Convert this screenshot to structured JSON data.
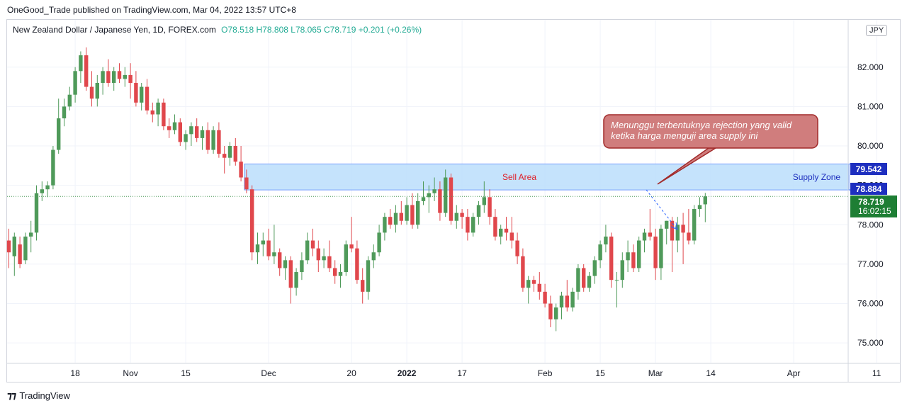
{
  "publisher_line": "OneGood_Trade published on TradingView.com, Mar 04, 2022 13:57 UTC+8",
  "legend": {
    "symbol": "New Zealand Dollar / Japanese Yen, 1D, FOREX.com",
    "open": "O78.518",
    "high": "H78.808",
    "low": "L78.065",
    "close": "C78.719",
    "change": "+0.201 (+0.26%)"
  },
  "currency_badge": "JPY",
  "footer_brand": "TradingView",
  "colors": {
    "up": "#4f9a5a",
    "down": "#e0474c",
    "zone_fill": "#bbdefb",
    "zone_border": "#2962ff",
    "sell_label": "#e0202a",
    "supply_label": "#1e2fbf",
    "callout_fill": "#d07d7d",
    "callout_border": "#a12a2a",
    "price_badge": "#1e7e34",
    "zone_badge": "#1e2fbf"
  },
  "annotations": {
    "sell_area": "Sell Area",
    "supply_zone": "Supply Zone",
    "callout_line1": "Menunggu terbentuknya rejection yang valid",
    "callout_line2": "ketika harga menguji area supply ini"
  },
  "price_badges": {
    "zone_top": "79.542",
    "zone_bottom": "78.884",
    "last_price": "78.719",
    "countdown": "16:02:15"
  },
  "chart_data": {
    "type": "candlestick",
    "timeframe": "1D",
    "ylim": [
      74.5,
      83.2
    ],
    "y_ticks": [
      75.0,
      76.0,
      77.0,
      78.0,
      79.0,
      80.0,
      81.0,
      82.0
    ],
    "y_tick_labels": [
      "75.000",
      "76.000",
      "77.000",
      "78.000",
      "79.000",
      "80.000",
      "81.000",
      "82.000"
    ],
    "x_tick_labels": [
      {
        "label": "18",
        "index": 12
      },
      {
        "label": "Nov",
        "index": 22
      },
      {
        "label": "15",
        "index": 32
      },
      {
        "label": "Dec",
        "index": 47
      },
      {
        "label": "20",
        "index": 62
      },
      {
        "label": "2022",
        "index": 72
      },
      {
        "label": "17",
        "index": 82
      },
      {
        "label": "Feb",
        "index": 97
      },
      {
        "label": "15",
        "index": 107
      },
      {
        "label": "Mar",
        "index": 117
      },
      {
        "label": "14",
        "index": 127
      },
      {
        "label": "Apr",
        "index": 142
      },
      {
        "label": "11",
        "index": 157
      }
    ],
    "supply_zone": {
      "top": 79.542,
      "bottom": 78.884,
      "start_index": 43,
      "end_index": 152
    },
    "last_close": 78.719,
    "candles": [
      {
        "o": 77.6,
        "h": 77.9,
        "l": 76.9,
        "c": 77.3
      },
      {
        "o": 77.2,
        "h": 77.8,
        "l": 76.7,
        "c": 77.7
      },
      {
        "o": 77.5,
        "h": 77.7,
        "l": 76.9,
        "c": 77.0
      },
      {
        "o": 77.1,
        "h": 77.8,
        "l": 77.0,
        "c": 77.7
      },
      {
        "o": 77.7,
        "h": 78.1,
        "l": 77.3,
        "c": 77.8
      },
      {
        "o": 77.8,
        "h": 79.0,
        "l": 77.6,
        "c": 78.8
      },
      {
        "o": 78.8,
        "h": 79.1,
        "l": 78.6,
        "c": 78.9
      },
      {
        "o": 78.9,
        "h": 79.1,
        "l": 78.7,
        "c": 79.0
      },
      {
        "o": 79.0,
        "h": 80.0,
        "l": 78.9,
        "c": 79.9
      },
      {
        "o": 79.9,
        "h": 81.2,
        "l": 79.8,
        "c": 80.7
      },
      {
        "o": 80.7,
        "h": 81.2,
        "l": 80.5,
        "c": 81.0
      },
      {
        "o": 81.0,
        "h": 81.5,
        "l": 80.9,
        "c": 81.3
      },
      {
        "o": 81.3,
        "h": 82.0,
        "l": 81.1,
        "c": 81.9
      },
      {
        "o": 81.9,
        "h": 82.4,
        "l": 81.6,
        "c": 82.3
      },
      {
        "o": 82.3,
        "h": 82.5,
        "l": 81.4,
        "c": 81.5
      },
      {
        "o": 81.5,
        "h": 81.9,
        "l": 81.0,
        "c": 81.2
      },
      {
        "o": 81.2,
        "h": 81.8,
        "l": 81.0,
        "c": 81.6
      },
      {
        "o": 81.6,
        "h": 82.0,
        "l": 81.3,
        "c": 81.9
      },
      {
        "o": 81.9,
        "h": 82.2,
        "l": 81.5,
        "c": 81.6
      },
      {
        "o": 81.6,
        "h": 82.0,
        "l": 81.4,
        "c": 81.9
      },
      {
        "o": 81.9,
        "h": 82.1,
        "l": 81.6,
        "c": 81.7
      },
      {
        "o": 81.7,
        "h": 82.0,
        "l": 81.5,
        "c": 81.8
      },
      {
        "o": 81.8,
        "h": 82.1,
        "l": 81.2,
        "c": 81.6
      },
      {
        "o": 81.6,
        "h": 81.9,
        "l": 81.0,
        "c": 81.1
      },
      {
        "o": 81.1,
        "h": 81.6,
        "l": 80.9,
        "c": 81.5
      },
      {
        "o": 81.5,
        "h": 81.7,
        "l": 80.8,
        "c": 80.9
      },
      {
        "o": 80.9,
        "h": 81.1,
        "l": 80.6,
        "c": 80.8
      },
      {
        "o": 80.8,
        "h": 81.2,
        "l": 80.5,
        "c": 81.1
      },
      {
        "o": 81.1,
        "h": 81.2,
        "l": 80.4,
        "c": 80.5
      },
      {
        "o": 80.5,
        "h": 80.7,
        "l": 80.2,
        "c": 80.4
      },
      {
        "o": 80.4,
        "h": 80.8,
        "l": 80.3,
        "c": 80.6
      },
      {
        "o": 80.6,
        "h": 80.7,
        "l": 80.0,
        "c": 80.1
      },
      {
        "o": 80.1,
        "h": 80.4,
        "l": 79.9,
        "c": 80.3
      },
      {
        "o": 80.3,
        "h": 80.6,
        "l": 80.0,
        "c": 80.5
      },
      {
        "o": 80.5,
        "h": 80.7,
        "l": 80.1,
        "c": 80.2
      },
      {
        "o": 80.2,
        "h": 80.5,
        "l": 79.9,
        "c": 80.4
      },
      {
        "o": 80.4,
        "h": 80.6,
        "l": 79.8,
        "c": 79.9
      },
      {
        "o": 79.9,
        "h": 80.5,
        "l": 79.8,
        "c": 80.4
      },
      {
        "o": 80.4,
        "h": 80.6,
        "l": 79.7,
        "c": 79.8
      },
      {
        "o": 79.8,
        "h": 80.0,
        "l": 79.3,
        "c": 79.7
      },
      {
        "o": 79.7,
        "h": 80.1,
        "l": 79.5,
        "c": 80.0
      },
      {
        "o": 80.0,
        "h": 80.2,
        "l": 79.5,
        "c": 79.6
      },
      {
        "o": 79.6,
        "h": 80.0,
        "l": 79.1,
        "c": 79.2
      },
      {
        "o": 79.2,
        "h": 79.4,
        "l": 78.8,
        "c": 78.9
      },
      {
        "o": 78.9,
        "h": 79.0,
        "l": 77.1,
        "c": 77.3
      },
      {
        "o": 77.3,
        "h": 77.8,
        "l": 77.0,
        "c": 77.5
      },
      {
        "o": 77.5,
        "h": 77.8,
        "l": 77.2,
        "c": 77.6
      },
      {
        "o": 77.6,
        "h": 77.9,
        "l": 77.1,
        "c": 77.2
      },
      {
        "o": 77.2,
        "h": 78.0,
        "l": 77.0,
        "c": 77.3
      },
      {
        "o": 77.3,
        "h": 77.4,
        "l": 76.7,
        "c": 76.9
      },
      {
        "o": 76.9,
        "h": 77.2,
        "l": 76.6,
        "c": 77.1
      },
      {
        "o": 77.1,
        "h": 77.2,
        "l": 76.0,
        "c": 76.4
      },
      {
        "o": 76.4,
        "h": 76.9,
        "l": 76.2,
        "c": 76.8
      },
      {
        "o": 76.8,
        "h": 77.3,
        "l": 76.6,
        "c": 77.1
      },
      {
        "o": 77.1,
        "h": 77.8,
        "l": 77.0,
        "c": 77.6
      },
      {
        "o": 77.6,
        "h": 77.9,
        "l": 77.2,
        "c": 77.4
      },
      {
        "o": 77.4,
        "h": 77.6,
        "l": 76.8,
        "c": 77.1
      },
      {
        "o": 77.1,
        "h": 77.4,
        "l": 76.9,
        "c": 77.2
      },
      {
        "o": 77.2,
        "h": 77.6,
        "l": 76.8,
        "c": 76.9
      },
      {
        "o": 76.9,
        "h": 77.1,
        "l": 76.5,
        "c": 76.7
      },
      {
        "o": 76.7,
        "h": 77.0,
        "l": 76.4,
        "c": 76.8
      },
      {
        "o": 76.8,
        "h": 77.6,
        "l": 76.7,
        "c": 77.5
      },
      {
        "o": 77.5,
        "h": 78.2,
        "l": 77.3,
        "c": 77.4
      },
      {
        "o": 77.4,
        "h": 77.6,
        "l": 76.5,
        "c": 76.6
      },
      {
        "o": 76.6,
        "h": 76.9,
        "l": 76.0,
        "c": 76.3
      },
      {
        "o": 76.3,
        "h": 77.2,
        "l": 76.1,
        "c": 77.1
      },
      {
        "o": 77.1,
        "h": 77.5,
        "l": 76.9,
        "c": 77.3
      },
      {
        "o": 77.3,
        "h": 78.0,
        "l": 77.2,
        "c": 77.8
      },
      {
        "o": 77.8,
        "h": 78.3,
        "l": 77.6,
        "c": 78.2
      },
      {
        "o": 78.2,
        "h": 78.4,
        "l": 77.9,
        "c": 78.0
      },
      {
        "o": 78.0,
        "h": 78.5,
        "l": 77.8,
        "c": 78.3
      },
      {
        "o": 78.3,
        "h": 78.6,
        "l": 78.0,
        "c": 78.1
      },
      {
        "o": 78.1,
        "h": 78.7,
        "l": 78.0,
        "c": 78.5
      },
      {
        "o": 78.5,
        "h": 78.8,
        "l": 77.9,
        "c": 78.0
      },
      {
        "o": 78.0,
        "h": 78.8,
        "l": 77.9,
        "c": 78.6
      },
      {
        "o": 78.6,
        "h": 79.1,
        "l": 78.5,
        "c": 78.7
      },
      {
        "o": 78.7,
        "h": 79.0,
        "l": 78.3,
        "c": 78.8
      },
      {
        "o": 78.8,
        "h": 79.2,
        "l": 78.6,
        "c": 78.9
      },
      {
        "o": 78.9,
        "h": 79.1,
        "l": 78.1,
        "c": 78.3
      },
      {
        "o": 78.3,
        "h": 79.4,
        "l": 78.2,
        "c": 79.2
      },
      {
        "o": 79.2,
        "h": 79.3,
        "l": 78.0,
        "c": 78.1
      },
      {
        "o": 78.1,
        "h": 78.5,
        "l": 77.9,
        "c": 78.3
      },
      {
        "o": 78.3,
        "h": 78.4,
        "l": 77.9,
        "c": 78.2
      },
      {
        "o": 78.2,
        "h": 78.4,
        "l": 77.6,
        "c": 77.8
      },
      {
        "o": 77.8,
        "h": 78.3,
        "l": 77.7,
        "c": 78.2
      },
      {
        "o": 78.2,
        "h": 78.6,
        "l": 78.0,
        "c": 78.5
      },
      {
        "o": 78.5,
        "h": 79.1,
        "l": 78.3,
        "c": 78.7
      },
      {
        "o": 78.7,
        "h": 78.9,
        "l": 78.0,
        "c": 78.2
      },
      {
        "o": 78.2,
        "h": 78.4,
        "l": 77.6,
        "c": 77.7
      },
      {
        "o": 77.7,
        "h": 78.0,
        "l": 77.5,
        "c": 77.9
      },
      {
        "o": 77.9,
        "h": 78.2,
        "l": 77.6,
        "c": 77.8
      },
      {
        "o": 77.8,
        "h": 78.2,
        "l": 77.4,
        "c": 77.6
      },
      {
        "o": 77.6,
        "h": 77.8,
        "l": 77.0,
        "c": 77.2
      },
      {
        "o": 77.2,
        "h": 77.4,
        "l": 76.3,
        "c": 76.4
      },
      {
        "o": 76.4,
        "h": 76.7,
        "l": 76.0,
        "c": 76.6
      },
      {
        "o": 76.6,
        "h": 76.7,
        "l": 76.3,
        "c": 76.5
      },
      {
        "o": 76.5,
        "h": 76.8,
        "l": 76.1,
        "c": 76.3
      },
      {
        "o": 76.3,
        "h": 76.5,
        "l": 75.9,
        "c": 76.0
      },
      {
        "o": 76.0,
        "h": 76.2,
        "l": 75.4,
        "c": 75.6
      },
      {
        "o": 75.6,
        "h": 76.0,
        "l": 75.3,
        "c": 75.9
      },
      {
        "o": 75.9,
        "h": 76.3,
        "l": 75.6,
        "c": 76.2
      },
      {
        "o": 76.2,
        "h": 76.6,
        "l": 75.8,
        "c": 75.9
      },
      {
        "o": 75.9,
        "h": 76.4,
        "l": 75.8,
        "c": 76.3
      },
      {
        "o": 76.3,
        "h": 77.0,
        "l": 76.1,
        "c": 76.9
      },
      {
        "o": 76.9,
        "h": 77.0,
        "l": 76.3,
        "c": 76.4
      },
      {
        "o": 76.4,
        "h": 76.8,
        "l": 76.3,
        "c": 76.7
      },
      {
        "o": 76.7,
        "h": 77.2,
        "l": 76.5,
        "c": 77.1
      },
      {
        "o": 77.1,
        "h": 77.6,
        "l": 76.9,
        "c": 77.5
      },
      {
        "o": 77.5,
        "h": 78.0,
        "l": 77.3,
        "c": 77.7
      },
      {
        "o": 77.7,
        "h": 77.8,
        "l": 76.4,
        "c": 76.6
      },
      {
        "o": 76.6,
        "h": 76.8,
        "l": 75.9,
        "c": 76.6
      },
      {
        "o": 76.6,
        "h": 77.3,
        "l": 76.4,
        "c": 77.1
      },
      {
        "o": 77.1,
        "h": 77.6,
        "l": 76.8,
        "c": 77.3
      },
      {
        "o": 77.3,
        "h": 77.5,
        "l": 76.8,
        "c": 76.9
      },
      {
        "o": 76.9,
        "h": 77.7,
        "l": 76.8,
        "c": 77.6
      },
      {
        "o": 77.6,
        "h": 77.9,
        "l": 77.3,
        "c": 77.8
      },
      {
        "o": 77.8,
        "h": 78.4,
        "l": 77.6,
        "c": 77.7
      },
      {
        "o": 77.7,
        "h": 77.9,
        "l": 76.6,
        "c": 76.9
      },
      {
        "o": 76.9,
        "h": 78.0,
        "l": 76.6,
        "c": 77.9
      },
      {
        "o": 77.9,
        "h": 78.1,
        "l": 77.5,
        "c": 78.1
      },
      {
        "o": 78.1,
        "h": 78.2,
        "l": 76.8,
        "c": 77.6
      },
      {
        "o": 77.6,
        "h": 78.2,
        "l": 77.3,
        "c": 78.0
      },
      {
        "o": 78.0,
        "h": 78.3,
        "l": 77.0,
        "c": 77.8
      },
      {
        "o": 77.8,
        "h": 78.4,
        "l": 77.5,
        "c": 77.6
      },
      {
        "o": 77.6,
        "h": 78.5,
        "l": 77.5,
        "c": 78.4
      },
      {
        "o": 78.4,
        "h": 78.7,
        "l": 78.2,
        "c": 78.5
      },
      {
        "o": 78.518,
        "h": 78.808,
        "l": 78.065,
        "c": 78.719
      }
    ]
  }
}
